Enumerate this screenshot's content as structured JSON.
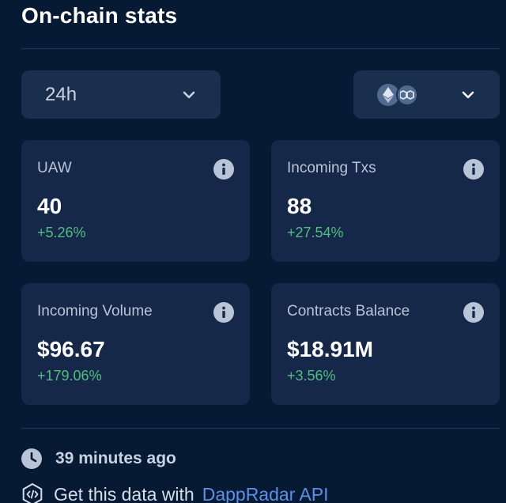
{
  "header": {
    "title": "On-chain stats"
  },
  "filters": {
    "period": {
      "selected": "24h"
    },
    "chains": {
      "icons": [
        "ethereum-icon",
        "polygon-icon"
      ]
    }
  },
  "stats": [
    {
      "label": "UAW",
      "value": "40",
      "change": "+5.26%"
    },
    {
      "label": "Incoming Txs",
      "value": "88",
      "change": "+27.54%"
    },
    {
      "label": "Incoming Volume",
      "value": "$96.67",
      "change": "+179.06%"
    },
    {
      "label": "Contracts Balance",
      "value": "$18.91M",
      "change": "+3.56%"
    }
  ],
  "footer": {
    "updated": "39 minutes ago",
    "api_text": "Get this data with",
    "api_link": "DappRadar API"
  },
  "colors": {
    "background": "#071a33",
    "card": "#15284a",
    "positive": "#4fbf7f",
    "link": "#5c8fe6"
  }
}
